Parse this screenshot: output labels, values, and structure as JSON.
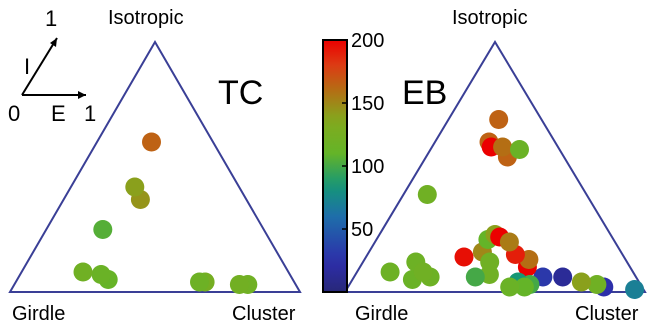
{
  "chart_data": [
    {
      "type": "scatter",
      "panel_label": "TC",
      "corner_labels": {
        "top": "Isotropic",
        "left": "Girdle",
        "right": "Cluster"
      },
      "axes_inset": {
        "i_label": "I",
        "i_value": "1",
        "e_label": "E",
        "e_value": "1",
        "origin": "0"
      },
      "points": [
        {
          "e": 0.83,
          "i": 0.03,
          "c": 120
        },
        {
          "e": 0.8,
          "i": 0.03,
          "c": 122
        },
        {
          "e": 0.68,
          "i": 0.04,
          "c": 125
        },
        {
          "e": 0.66,
          "i": 0.04,
          "c": 118
        },
        {
          "e": 0.33,
          "i": 0.05,
          "c": 112
        },
        {
          "e": 0.3,
          "i": 0.07,
          "c": 115
        },
        {
          "e": 0.23,
          "i": 0.08,
          "c": 120
        },
        {
          "e": 0.26,
          "i": 0.25,
          "c": 105
        },
        {
          "e": 0.42,
          "i": 0.37,
          "c": 145
        },
        {
          "e": 0.38,
          "i": 0.42,
          "c": 140
        },
        {
          "e": 0.47,
          "i": 0.6,
          "c": 165
        }
      ]
    },
    {
      "type": "scatter",
      "panel_label": "EB",
      "corner_labels": {
        "top": "Isotropic",
        "left": "Girdle",
        "right": "Cluster"
      },
      "colorbar": {
        "min": 0,
        "max": 200,
        "ticks": [
          "200",
          "150",
          "100",
          "50"
        ],
        "tick_values": [
          200,
          150,
          100,
          50
        ]
      },
      "points": [
        {
          "e": 0.97,
          "i": 0.01,
          "c": 70
        },
        {
          "e": 0.87,
          "i": 0.02,
          "c": 25
        },
        {
          "e": 0.85,
          "i": 0.03,
          "c": 120
        },
        {
          "e": 0.8,
          "i": 0.04,
          "c": 140
        },
        {
          "e": 0.74,
          "i": 0.06,
          "c": 15
        },
        {
          "e": 0.67,
          "i": 0.06,
          "c": 30
        },
        {
          "e": 0.62,
          "i": 0.1,
          "c": 200
        },
        {
          "e": 0.63,
          "i": 0.13,
          "c": 160
        },
        {
          "e": 0.58,
          "i": 0.15,
          "c": 190
        },
        {
          "e": 0.62,
          "i": 0.03,
          "c": 100
        },
        {
          "e": 0.58,
          "i": 0.04,
          "c": 85
        },
        {
          "e": 0.6,
          "i": 0.02,
          "c": 110
        },
        {
          "e": 0.55,
          "i": 0.02,
          "c": 115
        },
        {
          "e": 0.48,
          "i": 0.07,
          "c": 120
        },
        {
          "e": 0.43,
          "i": 0.06,
          "c": 100
        },
        {
          "e": 0.38,
          "i": 0.14,
          "c": 195
        },
        {
          "e": 0.45,
          "i": 0.16,
          "c": 150
        },
        {
          "e": 0.47,
          "i": 0.21,
          "c": 110
        },
        {
          "e": 0.5,
          "i": 0.23,
          "c": 140
        },
        {
          "e": 0.52,
          "i": 0.22,
          "c": 200
        },
        {
          "e": 0.56,
          "i": 0.2,
          "c": 155
        },
        {
          "e": 0.48,
          "i": 0.12,
          "c": 120
        },
        {
          "e": 0.27,
          "i": 0.06,
          "c": 118
        },
        {
          "e": 0.21,
          "i": 0.05,
          "c": 115
        },
        {
          "e": 0.2,
          "i": 0.12,
          "c": 118
        },
        {
          "e": 0.24,
          "i": 0.08,
          "c": 120
        },
        {
          "e": 0.12,
          "i": 0.08,
          "c": 118
        },
        {
          "e": 0.45,
          "i": 0.6,
          "c": 165
        },
        {
          "e": 0.47,
          "i": 0.58,
          "c": 200
        },
        {
          "e": 0.59,
          "i": 0.54,
          "c": 165
        },
        {
          "e": 0.56,
          "i": 0.58,
          "c": 160
        },
        {
          "e": 0.69,
          "i": 0.57,
          "c": 115
        },
        {
          "e": 0.54,
          "i": 0.69,
          "c": 165
        },
        {
          "e": 0.13,
          "i": 0.39,
          "c": 120
        }
      ]
    }
  ]
}
